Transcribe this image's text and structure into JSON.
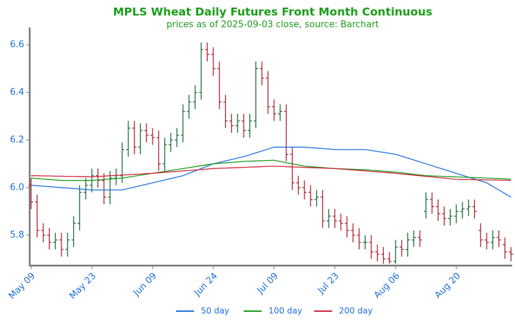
{
  "chart_data": {
    "type": "ohlc",
    "title": "MPLS Wheat Daily Futures Front Month Continuous",
    "subtitle": "prices as of 2025-09-03 close, source: Barchart",
    "categories": [
      "May 09",
      null,
      null,
      null,
      null,
      null,
      null,
      null,
      null,
      null,
      "May 23",
      null,
      null,
      null,
      null,
      null,
      null,
      null,
      null,
      null,
      "Jun 09",
      null,
      null,
      null,
      null,
      null,
      null,
      null,
      null,
      null,
      "Jun 24",
      null,
      null,
      null,
      null,
      null,
      null,
      null,
      null,
      null,
      "Jul 09",
      null,
      null,
      null,
      null,
      null,
      null,
      null,
      null,
      null,
      "Jul 23",
      null,
      null,
      null,
      null,
      null,
      null,
      null,
      null,
      null,
      "Aug 06",
      null,
      null,
      null,
      null,
      null,
      null,
      null,
      null,
      null,
      "Aug 20",
      null,
      null,
      null,
      null,
      null,
      null,
      null,
      null,
      null
    ],
    "open": [
      6.01,
      5.94,
      5.82,
      5.8,
      5.77,
      5.78,
      5.74,
      5.78,
      5.85,
      5.98,
      6.01,
      6.05,
      6.03,
      5.96,
      6.04,
      6.05,
      6.16,
      6.25,
      6.17,
      6.24,
      6.22,
      6.21,
      6.1,
      6.18,
      6.2,
      6.22,
      6.32,
      6.36,
      6.4,
      6.58,
      6.56,
      6.5,
      6.36,
      6.28,
      6.26,
      6.28,
      6.24,
      6.28,
      6.5,
      6.46,
      6.34,
      6.31,
      6.32,
      6.14,
      6.02,
      6.0,
      5.98,
      5.95,
      5.96,
      5.86,
      5.88,
      5.86,
      5.85,
      5.82,
      5.8,
      5.77,
      5.77,
      5.73,
      5.72,
      5.7,
      5.69,
      5.75,
      5.74,
      5.78,
      5.79,
      5.9,
      5.95,
      5.92,
      5.89,
      5.87,
      5.88,
      5.9,
      5.91,
      5.92,
      5.82,
      5.78,
      5.77,
      5.79,
      5.76,
      5.73
    ],
    "high": [
      6.04,
      5.97,
      5.85,
      5.83,
      5.81,
      5.81,
      5.81,
      5.88,
      6.01,
      6.04,
      6.08,
      6.08,
      6.06,
      6.07,
      6.08,
      6.19,
      6.28,
      6.28,
      6.27,
      6.27,
      6.25,
      6.24,
      6.21,
      6.23,
      6.25,
      6.35,
      6.39,
      6.43,
      6.61,
      6.61,
      6.59,
      6.53,
      6.39,
      6.31,
      6.31,
      6.31,
      6.31,
      6.53,
      6.53,
      6.49,
      6.37,
      6.35,
      6.35,
      6.17,
      6.05,
      6.03,
      6.01,
      5.99,
      5.99,
      5.91,
      5.91,
      5.89,
      5.88,
      5.85,
      5.83,
      5.8,
      5.8,
      5.76,
      5.75,
      5.73,
      5.78,
      5.78,
      5.81,
      5.82,
      5.82,
      5.98,
      5.98,
      5.95,
      5.92,
      5.91,
      5.93,
      5.94,
      5.95,
      5.95,
      5.85,
      5.81,
      5.82,
      5.82,
      5.79,
      5.75
    ],
    "low": [
      5.91,
      5.79,
      5.77,
      5.74,
      5.74,
      5.71,
      5.71,
      5.75,
      5.82,
      5.95,
      5.98,
      6.0,
      5.93,
      5.93,
      6.01,
      6.02,
      6.13,
      6.14,
      6.14,
      6.19,
      6.18,
      6.07,
      6.07,
      6.15,
      6.17,
      6.19,
      6.29,
      6.33,
      6.37,
      6.53,
      6.47,
      6.33,
      6.25,
      6.23,
      6.23,
      6.21,
      6.21,
      6.25,
      6.43,
      6.31,
      6.28,
      6.28,
      6.11,
      5.99,
      5.97,
      5.95,
      5.92,
      5.92,
      5.83,
      5.83,
      5.83,
      5.82,
      5.79,
      5.77,
      5.74,
      5.74,
      5.7,
      5.69,
      5.68,
      5.68,
      5.68,
      5.71,
      5.71,
      5.75,
      5.75,
      5.87,
      5.89,
      5.86,
      5.84,
      5.84,
      5.85,
      5.87,
      5.88,
      5.87,
      5.75,
      5.74,
      5.74,
      5.75,
      5.7,
      5.69
    ],
    "close": [
      5.94,
      5.82,
      5.8,
      5.77,
      5.78,
      5.74,
      5.78,
      5.85,
      5.98,
      6.01,
      6.05,
      6.03,
      5.96,
      6.04,
      6.05,
      6.16,
      6.25,
      6.17,
      6.24,
      6.22,
      6.21,
      6.1,
      6.18,
      6.2,
      6.22,
      6.32,
      6.36,
      6.4,
      6.58,
      6.56,
      6.5,
      6.36,
      6.28,
      6.26,
      6.28,
      6.24,
      6.28,
      6.5,
      6.46,
      6.34,
      6.31,
      6.32,
      6.14,
      6.02,
      6.0,
      5.98,
      5.95,
      5.96,
      5.86,
      5.88,
      5.86,
      5.85,
      5.82,
      5.8,
      5.77,
      5.77,
      5.73,
      5.72,
      5.7,
      5.69,
      5.75,
      5.74,
      5.78,
      5.79,
      5.78,
      5.95,
      5.92,
      5.89,
      5.87,
      5.88,
      5.9,
      5.91,
      5.92,
      5.9,
      5.78,
      5.77,
      5.79,
      5.78,
      5.73,
      5.72
    ],
    "up_color": "#1b6b3a",
    "down_color": "#b0202e",
    "series": [
      {
        "name": "50 day",
        "color": "#1f6fe0",
        "values": [
          6.01,
          6.008,
          6.006,
          6.004,
          6.002,
          6.0,
          5.998,
          5.996,
          5.994,
          5.992,
          5.99,
          5.99,
          5.99,
          5.99,
          5.99,
          5.99,
          5.996,
          6.002,
          6.008,
          6.014,
          6.02,
          6.026,
          6.032,
          6.038,
          6.044,
          6.05,
          6.06,
          6.07,
          6.08,
          6.09,
          6.1,
          6.106,
          6.112,
          6.118,
          6.124,
          6.13,
          6.138,
          6.146,
          6.154,
          6.162,
          6.17,
          6.17,
          6.17,
          6.17,
          6.17,
          6.17,
          6.168,
          6.166,
          6.164,
          6.162,
          6.16,
          6.16,
          6.16,
          6.16,
          6.16,
          6.16,
          6.156,
          6.152,
          6.148,
          6.144,
          6.14,
          6.132,
          6.124,
          6.116,
          6.108,
          6.1,
          6.092,
          6.084,
          6.076,
          6.068,
          6.06,
          6.052,
          6.044,
          6.036,
          6.028,
          6.02,
          6.005,
          5.99,
          5.975,
          5.96
        ]
      },
      {
        "name": "100 day",
        "color": "#1a9a1a",
        "values": [
          6.04,
          6.038,
          6.036,
          6.034,
          6.032,
          6.03,
          6.03,
          6.03,
          6.03,
          6.03,
          6.03,
          6.032,
          6.034,
          6.036,
          6.038,
          6.04,
          6.044,
          6.048,
          6.052,
          6.056,
          6.06,
          6.064,
          6.068,
          6.072,
          6.076,
          6.08,
          6.084,
          6.088,
          6.092,
          6.096,
          6.1,
          6.102,
          6.104,
          6.106,
          6.108,
          6.11,
          6.111,
          6.112,
          6.113,
          6.114,
          6.115,
          6.11,
          6.105,
          6.1,
          6.095,
          6.09,
          6.088,
          6.086,
          6.084,
          6.082,
          6.08,
          6.079,
          6.078,
          6.077,
          6.076,
          6.075,
          6.073,
          6.071,
          6.069,
          6.067,
          6.065,
          6.062,
          6.059,
          6.056,
          6.053,
          6.05,
          6.049,
          6.048,
          6.047,
          6.046,
          6.045,
          6.044,
          6.043,
          6.042,
          6.041,
          6.04,
          6.039,
          6.038,
          6.037,
          6.035
        ]
      },
      {
        "name": "200 day",
        "color": "#d0233a",
        "values": [
          6.05,
          6.05,
          6.049,
          6.049,
          6.048,
          6.048,
          6.047,
          6.047,
          6.046,
          6.046,
          6.045,
          6.047,
          6.048,
          6.05,
          6.051,
          6.053,
          6.054,
          6.056,
          6.057,
          6.059,
          6.06,
          6.062,
          6.064,
          6.066,
          6.068,
          6.07,
          6.072,
          6.074,
          6.076,
          6.078,
          6.08,
          6.081,
          6.082,
          6.083,
          6.084,
          6.085,
          6.086,
          6.087,
          6.088,
          6.089,
          6.09,
          6.089,
          6.088,
          6.087,
          6.086,
          6.085,
          6.084,
          6.083,
          6.082,
          6.081,
          6.08,
          6.078,
          6.076,
          6.074,
          6.072,
          6.07,
          6.068,
          6.066,
          6.064,
          6.062,
          6.06,
          6.057,
          6.055,
          6.052,
          6.05,
          6.047,
          6.045,
          6.042,
          6.04,
          6.037,
          6.035,
          6.034,
          6.034,
          6.033,
          6.033,
          6.032,
          6.032,
          6.031,
          6.031,
          6.03
        ]
      }
    ],
    "ylim": [
      5.675,
      6.665
    ],
    "yticks": [
      5.8,
      {
        "value": 6,
        "label": "6.0"
      },
      6.2,
      6.4,
      6.6
    ],
    "legend": "lower center"
  }
}
